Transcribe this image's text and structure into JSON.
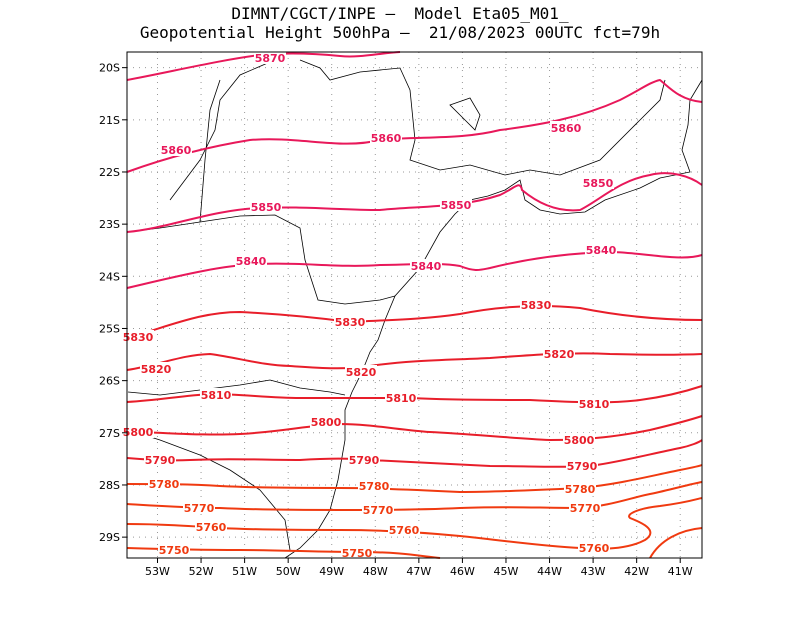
{
  "title": {
    "line1": "DIMNT/CGCT/INPE –  Model Eta05_M01_",
    "line2": "Geopotential Height 500hPa –  21/08/2023 00UTC fct=79h"
  },
  "axes": {
    "lon_labels": [
      "53W",
      "52W",
      "51W",
      "50W",
      "49W",
      "48W",
      "47W",
      "46W",
      "45W",
      "44W",
      "43W",
      "42W",
      "41W"
    ],
    "lat_labels": [
      "20S",
      "21S",
      "22S",
      "23S",
      "24S",
      "25S",
      "26S",
      "27S",
      "28S",
      "29S"
    ]
  },
  "colors": {
    "high": "#e8185a",
    "mid": "#e81e2a",
    "low": "#f03a10",
    "coast": "#000000",
    "grid": "#999999"
  },
  "chart_data": {
    "type": "contour",
    "variable": "Geopotential Height 500hPa",
    "lon_range": [
      -53.7,
      -40.5
    ],
    "lat_range": [
      -29.4,
      -19.7
    ],
    "contour_interval": 10,
    "contours": [
      {
        "level": 5870,
        "label": "5870"
      },
      {
        "level": 5860,
        "label": "5860"
      },
      {
        "level": 5850,
        "label": "5850"
      },
      {
        "level": 5840,
        "label": "5840"
      },
      {
        "level": 5830,
        "label": "5830"
      },
      {
        "level": 5820,
        "label": "5820"
      },
      {
        "level": 5810,
        "label": "5810"
      },
      {
        "level": 5800,
        "label": "5800"
      },
      {
        "level": 5790,
        "label": "5790"
      },
      {
        "level": 5780,
        "label": "5780"
      },
      {
        "level": 5770,
        "label": "5770"
      },
      {
        "level": 5760,
        "label": "5760"
      },
      {
        "level": 5750,
        "label": "5750"
      }
    ]
  }
}
